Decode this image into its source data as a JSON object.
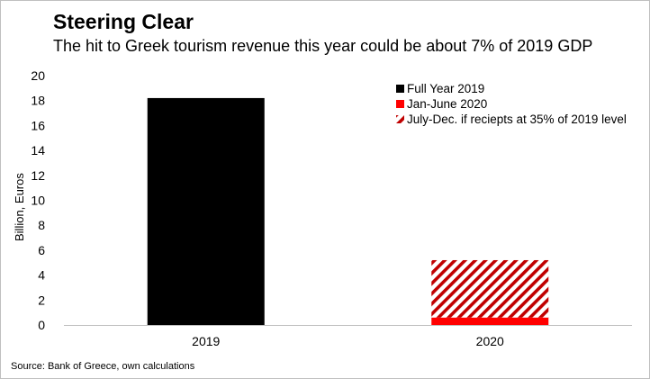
{
  "chart_data": {
    "type": "bar",
    "title": "Steering Clear",
    "subtitle": "The hit to Greek tourism revenue this year could be about 7% of 2019 GDP",
    "ylabel": "Billion, Euros",
    "xlabel": "",
    "ylim": [
      0,
      20
    ],
    "yticks": [
      "0",
      "2",
      "4",
      "6",
      "8",
      "10",
      "12",
      "14",
      "16",
      "18",
      "20"
    ],
    "categories": [
      "2019",
      "2020"
    ],
    "stacked": true,
    "series": [
      {
        "name": "Full Year 2019",
        "color": "#000000",
        "pattern": "solid",
        "values": [
          18.2,
          null
        ]
      },
      {
        "name": "Jan-June 2020",
        "color": "#ff0000",
        "pattern": "solid",
        "values": [
          null,
          0.6
        ]
      },
      {
        "name": "July-Dec. if reciepts at 35% of 2019 level",
        "color": "#c00000",
        "pattern": "diagonal-stripes",
        "values": [
          null,
          4.6
        ]
      }
    ],
    "legend_position": "top-right",
    "grid": false,
    "source": "Source: Bank of Greece, own calculations"
  }
}
